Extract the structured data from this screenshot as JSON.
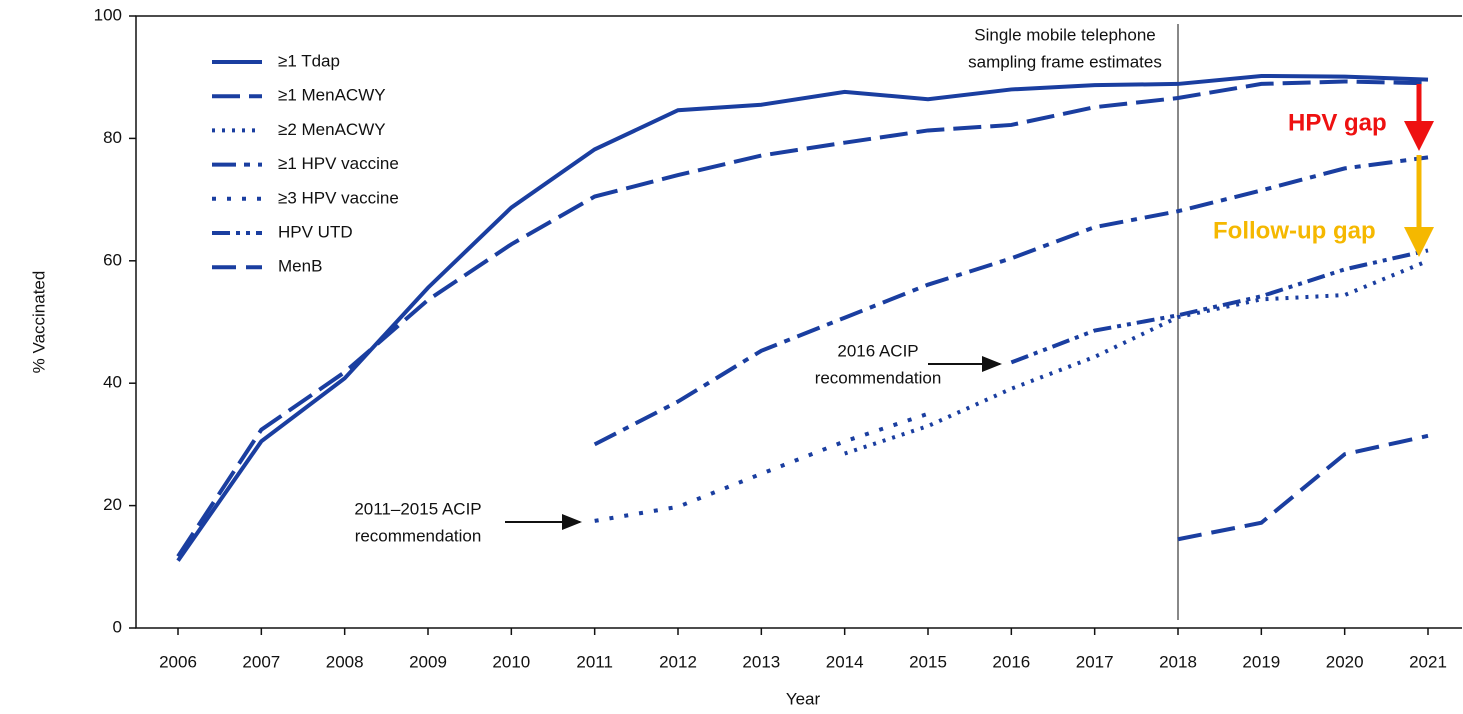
{
  "chart_data": {
    "type": "line",
    "xlabel": "Year",
    "ylabel": "% Vaccinated",
    "categories": [
      "2006",
      "2007",
      "2008",
      "2009",
      "2010",
      "2011",
      "2012",
      "2013",
      "2014",
      "2015",
      "2016",
      "2017",
      "2018",
      "2019",
      "2020",
      "2021"
    ],
    "ylim": [
      0,
      100
    ],
    "yticks": [
      0,
      20,
      40,
      60,
      80,
      100
    ],
    "legend": "upper left",
    "series": [
      {
        "name": "≥1 Tdap",
        "color": "#1a3ea0",
        "values": [
          11,
          30.5,
          40.8,
          55.6,
          68.7,
          78.2,
          84.6,
          85.5,
          87.6,
          86.4,
          88,
          88.7,
          88.9,
          90.2,
          90.1,
          89.6
        ]
      },
      {
        "name": "≥1 MenACWY",
        "color": "#1a3ea0",
        "values": [
          11.7,
          32.4,
          41.8,
          53.6,
          62.7,
          70.5,
          74,
          77.2,
          79.3,
          81.3,
          82.2,
          85.1,
          86.6,
          88.9,
          89.3,
          89
        ]
      },
      {
        "name": "≥2 MenACWY",
        "color": "#1a3ea0",
        "values": [
          null,
          null,
          null,
          null,
          null,
          null,
          null,
          null,
          28.5,
          33,
          39.1,
          44.3,
          50.8,
          53.7,
          54.4,
          60
        ]
      },
      {
        "name": "≥1 HPV vaccine",
        "color": "#1a3ea0",
        "values": [
          null,
          null,
          null,
          null,
          null,
          30,
          37,
          45.3,
          50.7,
          56.1,
          60.4,
          65.5,
          68.1,
          71.5,
          75.1,
          76.9
        ]
      },
      {
        "name": "≥3 HPV vaccine",
        "color": "#1a3ea0",
        "values": [
          null,
          null,
          null,
          null,
          null,
          17.5,
          19.8,
          25.2,
          30.5,
          35,
          null,
          null,
          null,
          null,
          null,
          null
        ]
      },
      {
        "name": "HPV UTD",
        "color": "#1a3ea0",
        "values": [
          null,
          null,
          null,
          null,
          null,
          null,
          null,
          null,
          null,
          null,
          43.4,
          48.6,
          51.1,
          54.2,
          58.6,
          61.7
        ]
      },
      {
        "name": "MenB",
        "color": "#1a3ea0",
        "values": [
          null,
          null,
          null,
          null,
          null,
          null,
          null,
          null,
          null,
          null,
          null,
          null,
          14.5,
          17.2,
          28.4,
          31.4
        ]
      }
    ],
    "annotations": [
      {
        "lines": [
          "Single mobile telephone",
          "sampling frame estimates"
        ]
      },
      {
        "lines": [
          "2011–2015 ACIP",
          "recommendation"
        ]
      },
      {
        "lines": [
          "2016 ACIP",
          "recommendation"
        ]
      },
      {
        "lines": [
          "HPV gap"
        ],
        "color": "#ee1111"
      },
      {
        "lines": [
          "Follow-up gap"
        ],
        "color": "#f5b800"
      }
    ]
  }
}
